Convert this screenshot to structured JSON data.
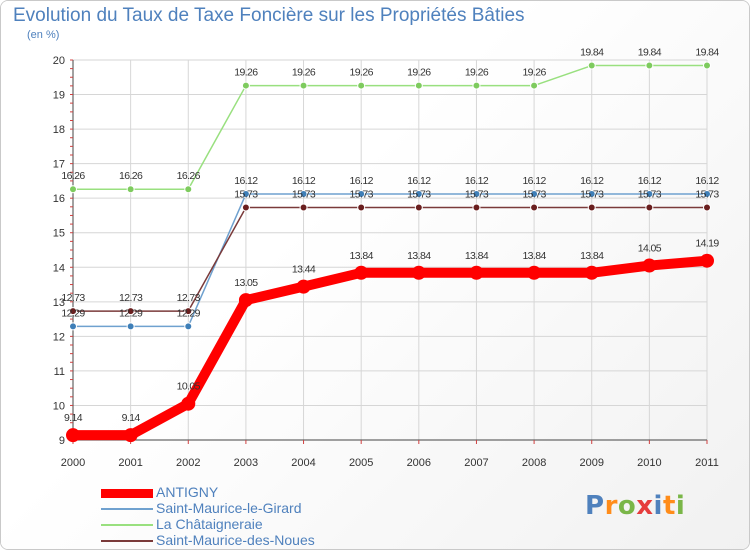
{
  "header": {
    "title": "Evolution du Taux de Taxe Foncière sur les Propriétés Bâties",
    "unit": "(en %)"
  },
  "logo": {
    "text": "Proxiti"
  },
  "chart_data": {
    "type": "line",
    "title": "Evolution du Taux de Taxe Foncière sur les Propriétés Bâties",
    "ylabel": "(en %)",
    "xlabel": "",
    "ylim": [
      9,
      20
    ],
    "yticks": [
      "9",
      "10",
      "11",
      "12",
      "13",
      "14",
      "15",
      "16",
      "17",
      "18",
      "19",
      "20"
    ],
    "categories": [
      "2000",
      "2001",
      "2002",
      "2003",
      "2004",
      "2005",
      "2006",
      "2007",
      "2008",
      "2009",
      "2010",
      "2011"
    ],
    "legend_position": "bottom-left",
    "series": [
      {
        "name": "ANTIGNY",
        "color": "#ff0000",
        "emphasis": "thick",
        "dot_color": "#ff0000",
        "values": [
          9.14,
          9.14,
          10.05,
          13.05,
          13.44,
          13.84,
          13.84,
          13.84,
          13.84,
          13.84,
          14.05,
          14.19
        ],
        "labels": [
          "9.14",
          "9.14",
          "10.05",
          "13.05",
          "13.44",
          "13.84",
          "13.84",
          "13.84",
          "13.84",
          "13.84",
          "14.05",
          "14.19"
        ]
      },
      {
        "name": "Saint-Maurice-le-Girard",
        "color": "#6fa1cf",
        "dot_color": "#3e7fb8",
        "values": [
          12.29,
          12.29,
          12.29,
          16.12,
          16.12,
          16.12,
          16.12,
          16.12,
          16.12,
          16.12,
          16.12,
          16.12
        ],
        "labels": [
          "12.29",
          "12.29",
          "12.29",
          "16.12",
          "16.12",
          "16.12",
          "16.12",
          "16.12",
          "16.12",
          "16.12",
          "16.12",
          "16.12"
        ]
      },
      {
        "name": "La Châtaigneraie",
        "color": "#99e07f",
        "dot_color": "#7ecb5e",
        "values": [
          16.26,
          16.26,
          16.26,
          19.26,
          19.26,
          19.26,
          19.26,
          19.26,
          19.26,
          19.84,
          19.84,
          19.84
        ],
        "labels": [
          "16.26",
          "16.26",
          "16.26",
          "19.26",
          "19.26",
          "19.26",
          "19.26",
          "19.26",
          "19.26",
          "19.84",
          "19.84",
          "19.84"
        ]
      },
      {
        "name": "Saint-Maurice-des-Noues",
        "color": "#7a3a3a",
        "dot_color": "#6a1f1f",
        "values": [
          12.73,
          12.73,
          12.73,
          15.73,
          15.73,
          15.73,
          15.73,
          15.73,
          15.73,
          15.73,
          15.73,
          15.73
        ],
        "labels": [
          "12.73",
          "12.73",
          "12.73",
          "15.73",
          "15.73",
          "15.73",
          "15.73",
          "15.73",
          "15.73",
          "15.73",
          "15.73",
          "15.73"
        ]
      }
    ]
  }
}
